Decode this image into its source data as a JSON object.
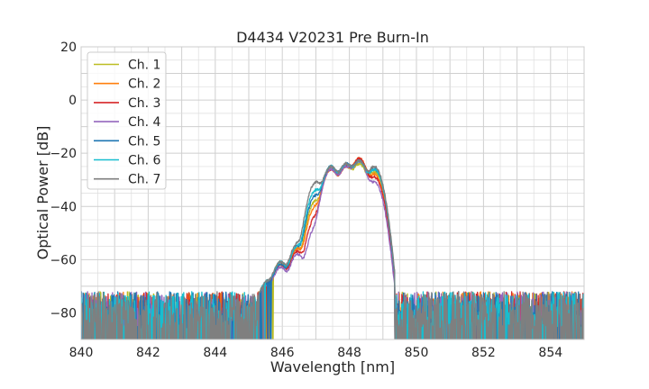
{
  "chart_data": {
    "type": "line",
    "title": "D4434 V20231 Pre Burn-In",
    "xlabel": "Wavelength [nm]",
    "ylabel": "Optical Power [dB]",
    "xlim": [
      840,
      855
    ],
    "ylim": [
      -90,
      20
    ],
    "xticks": [
      840,
      842,
      844,
      846,
      848,
      850,
      852,
      854
    ],
    "yticks": [
      20,
      0,
      -20,
      -40,
      -60,
      -80
    ],
    "xtick_labels": [
      "840",
      "842",
      "844",
      "846",
      "848",
      "850",
      "852",
      "854"
    ],
    "ytick_labels": [
      "20",
      "0",
      "−20",
      "−40",
      "−60",
      "−80"
    ],
    "grid": true,
    "legend_position": "upper-left",
    "noise_floor": -80,
    "series": [
      {
        "name": "Ch. 1",
        "color": "#bcbd22",
        "peaks": [
          [
            845.55,
            -70
          ],
          [
            845.95,
            -61
          ],
          [
            846.45,
            -56
          ],
          [
            847.0,
            -38
          ],
          [
            847.45,
            -26
          ],
          [
            847.9,
            -25
          ],
          [
            848.3,
            -24
          ],
          [
            848.75,
            -27
          ]
        ]
      },
      {
        "name": "Ch. 2",
        "color": "#ff7f0e",
        "peaks": [
          [
            845.55,
            -70
          ],
          [
            845.95,
            -62
          ],
          [
            846.45,
            -56
          ],
          [
            847.0,
            -40
          ],
          [
            847.45,
            -26
          ],
          [
            847.9,
            -25
          ],
          [
            848.3,
            -22
          ],
          [
            848.75,
            -28
          ]
        ]
      },
      {
        "name": "Ch. 3",
        "color": "#d62728",
        "peaks": [
          [
            845.55,
            -70
          ],
          [
            845.95,
            -62
          ],
          [
            846.45,
            -57
          ],
          [
            847.0,
            -44
          ],
          [
            847.45,
            -26
          ],
          [
            847.9,
            -25
          ],
          [
            848.3,
            -22
          ],
          [
            848.75,
            -29
          ]
        ]
      },
      {
        "name": "Ch. 4",
        "color": "#9467bd",
        "peaks": [
          [
            845.55,
            -71
          ],
          [
            845.95,
            -63
          ],
          [
            846.45,
            -58
          ],
          [
            847.0,
            -48
          ],
          [
            847.45,
            -26
          ],
          [
            847.9,
            -25
          ],
          [
            848.3,
            -23
          ],
          [
            848.75,
            -31
          ]
        ]
      },
      {
        "name": "Ch. 5",
        "color": "#1f77b4",
        "peaks": [
          [
            845.55,
            -70
          ],
          [
            845.95,
            -62
          ],
          [
            846.45,
            -55
          ],
          [
            847.0,
            -36
          ],
          [
            847.45,
            -25
          ],
          [
            847.9,
            -24
          ],
          [
            848.3,
            -23
          ],
          [
            848.75,
            -26
          ]
        ]
      },
      {
        "name": "Ch. 6",
        "color": "#17becf",
        "peaks": [
          [
            845.55,
            -69
          ],
          [
            845.95,
            -61
          ],
          [
            846.45,
            -55
          ],
          [
            847.0,
            -34
          ],
          [
            847.45,
            -25
          ],
          [
            847.9,
            -24
          ],
          [
            848.3,
            -23
          ],
          [
            848.75,
            -26
          ]
        ]
      },
      {
        "name": "Ch. 7",
        "color": "#7f7f7f",
        "peaks": [
          [
            845.55,
            -69
          ],
          [
            845.95,
            -61
          ],
          [
            846.45,
            -54
          ],
          [
            847.0,
            -31
          ],
          [
            847.45,
            -25
          ],
          [
            847.9,
            -24
          ],
          [
            848.3,
            -23
          ],
          [
            848.75,
            -25
          ]
        ]
      }
    ]
  }
}
